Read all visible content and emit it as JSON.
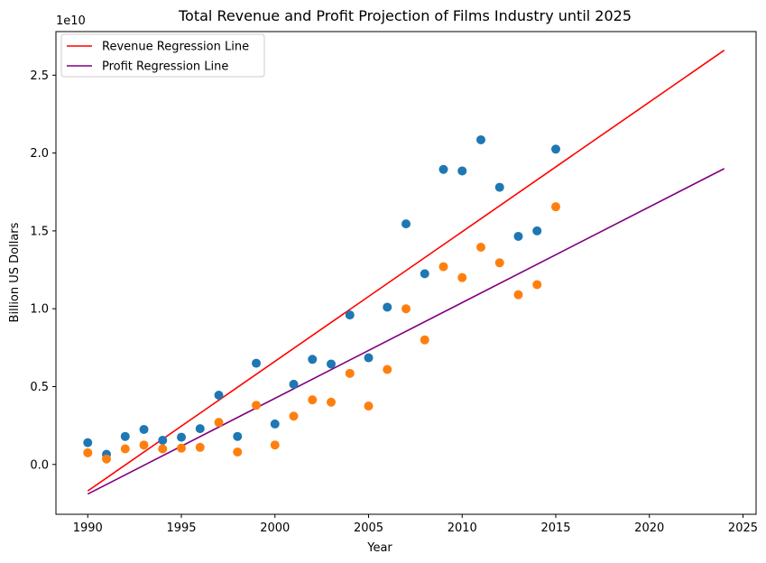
{
  "chart_data": {
    "type": "scatter",
    "title": "Total Revenue and Profit Projection of Films Industry until 2025",
    "xlabel": "Year",
    "ylabel": "Billion US Dollars",
    "y_offset_label": "1e10",
    "xlim": [
      1988.3,
      2025.7
    ],
    "ylim": [
      -3200000000.0,
      27800000000.0
    ],
    "x_ticks": [
      1990,
      1995,
      2000,
      2005,
      2010,
      2015,
      2020,
      2025
    ],
    "y_ticks": [
      0,
      5000000000.0,
      10000000000.0,
      15000000000.0,
      20000000000.0,
      25000000000.0
    ],
    "y_tick_labels": [
      "0.0",
      "0.5",
      "1.0",
      "1.5",
      "2.0",
      "2.5"
    ],
    "grid": false,
    "legend_position": "upper-left",
    "x": [
      1990,
      1991,
      1992,
      1993,
      1994,
      1995,
      1996,
      1997,
      1998,
      1999,
      2000,
      2001,
      2002,
      2003,
      2004,
      2005,
      2006,
      2007,
      2008,
      2009,
      2010,
      2011,
      2012,
      2013,
      2014,
      2015
    ],
    "series": [
      {
        "marker": "scatter",
        "color": "#1f77b4",
        "values": [
          1400000000.0,
          650000000.0,
          1800000000.0,
          2250000000.0,
          1550000000.0,
          1750000000.0,
          2300000000.0,
          4450000000.0,
          1800000000.0,
          6500000000.0,
          2600000000.0,
          5150000000.0,
          6750000000.0,
          6450000000.0,
          9600000000.0,
          6850000000.0,
          10100000000.0,
          15450000000.0,
          12250000000.0,
          18950000000.0,
          18850000000.0,
          20850000000.0,
          17800000000.0,
          14650000000.0,
          15000000000.0,
          20250000000.0
        ]
      },
      {
        "marker": "scatter",
        "color": "#ff7f0e",
        "values": [
          750000000.0,
          350000000.0,
          1000000000.0,
          1250000000.0,
          1000000000.0,
          1050000000.0,
          1100000000.0,
          2700000000.0,
          800000000.0,
          3800000000.0,
          1250000000.0,
          3100000000.0,
          4150000000.0,
          4000000000.0,
          5850000000.0,
          3750000000.0,
          6100000000.0,
          10000000000.0,
          8000000000.0,
          12700000000.0,
          12000000000.0,
          13950000000.0,
          12950000000.0,
          10900000000.0,
          11550000000.0,
          16550000000.0
        ]
      }
    ],
    "lines": [
      {
        "name": "Revenue Regression Line",
        "color": "#ff0000",
        "x": [
          1990,
          2024
        ],
        "y": [
          -1700000000.0,
          26600000000.0
        ]
      },
      {
        "name": "Profit Regression Line",
        "color": "#800080",
        "x": [
          1990,
          2024
        ],
        "y": [
          -1900000000.0,
          19000000000.0
        ]
      }
    ]
  }
}
